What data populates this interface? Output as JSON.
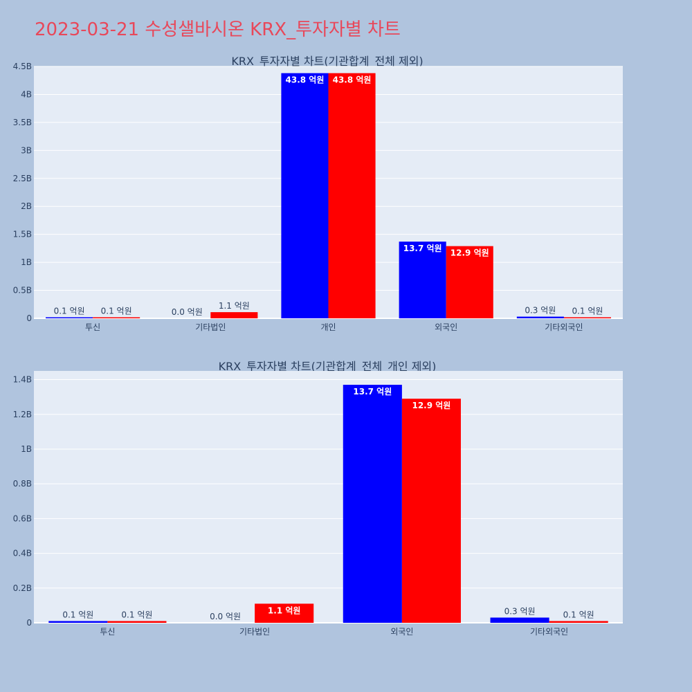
{
  "page_title": "2023-03-21 수성샐바시온 KRX_투자자별 차트",
  "colors": {
    "background": "#b0c4de",
    "plot_background": "#e5ecf6",
    "title": "#e8485a",
    "text": "#2a3f5f",
    "series_1": "#0000ff",
    "series_2": "#ff0000"
  },
  "chart_data": [
    {
      "type": "bar",
      "title": "KRX_투자자별 차트(기관합계_전체 제외)",
      "categories": [
        "투신",
        "기타법인",
        "개인",
        "외국인",
        "기타외국인"
      ],
      "series": [
        {
          "color": "#0000ff",
          "values": [
            10000000,
            0,
            4380000000,
            1370000000,
            30000000
          ],
          "labels": [
            "0.1 억원",
            "0.0 억원",
            "43.8 억원",
            "13.7 억원",
            "0.3 억원"
          ]
        },
        {
          "color": "#ff0000",
          "values": [
            10000000,
            110000000,
            4380000000,
            1290000000,
            10000000
          ],
          "labels": [
            "0.1 억원",
            "1.1 억원",
            "43.8 억원",
            "12.9 억원",
            "0.1 억원"
          ]
        }
      ],
      "ylim": [
        0,
        4500000000
      ],
      "yticks": [
        0,
        500000000,
        1000000000,
        1500000000,
        2000000000,
        2500000000,
        3000000000,
        3500000000,
        4000000000,
        4500000000
      ],
      "ytick_labels": [
        "0",
        "0.5B",
        "1B",
        "1.5B",
        "2B",
        "2.5B",
        "3B",
        "3.5B",
        "4B",
        "4.5B"
      ],
      "grid": true,
      "legend": "none"
    },
    {
      "type": "bar",
      "title": "KRX_투자자별 차트(기관합계_전체_개인 제외)",
      "categories": [
        "투신",
        "기타법인",
        "외국인",
        "기타외국인"
      ],
      "series": [
        {
          "color": "#0000ff",
          "values": [
            10000000,
            0,
            1370000000,
            30000000
          ],
          "labels": [
            "0.1 억원",
            "0.0 억원",
            "13.7 억원",
            "0.3 억원"
          ]
        },
        {
          "color": "#ff0000",
          "values": [
            10000000,
            110000000,
            1290000000,
            10000000
          ],
          "labels": [
            "0.1 억원",
            "1.1 억원",
            "12.9 억원",
            "0.1 억원"
          ]
        }
      ],
      "ylim": [
        0,
        1450000000
      ],
      "yticks": [
        0,
        200000000,
        400000000,
        600000000,
        800000000,
        1000000000,
        1200000000,
        1400000000
      ],
      "ytick_labels": [
        "0",
        "0.2B",
        "0.4B",
        "0.6B",
        "0.8B",
        "1B",
        "1.2B",
        "1.4B"
      ],
      "grid": true,
      "legend": "none"
    }
  ]
}
